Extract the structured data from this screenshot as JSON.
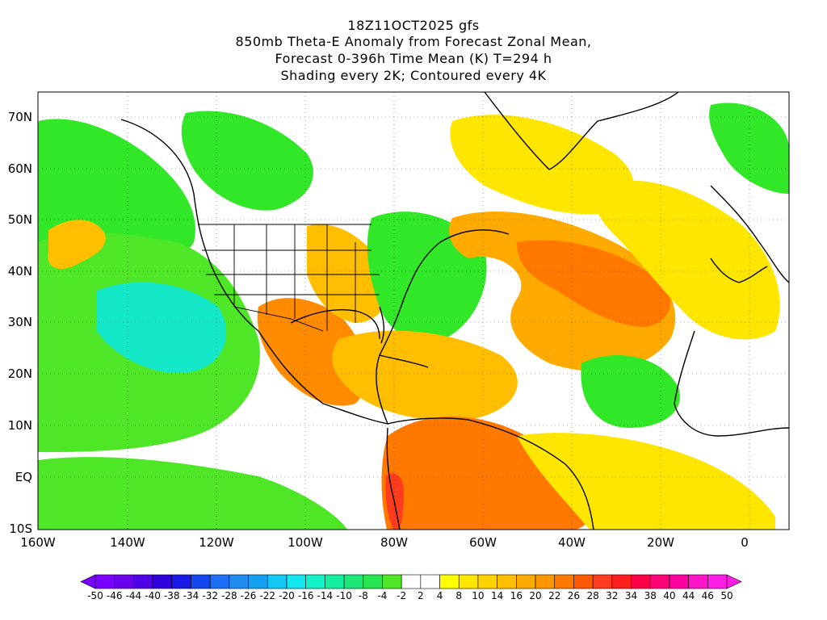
{
  "title": {
    "line1": "18Z11OCT2025 gfs",
    "line2": "850mb Theta-E Anomaly from Forecast Zonal Mean,",
    "line3": "Forecast 0-396h Time Mean (K) T=294 h",
    "line4": "Shading every 2K; Contoured every 4K"
  },
  "axes": {
    "lat_labels": [
      "70N",
      "60N",
      "50N",
      "40N",
      "30N",
      "20N",
      "10N",
      "EQ",
      "10S"
    ],
    "lon_labels": [
      "160W",
      "140W",
      "120W",
      "100W",
      "80W",
      "60W",
      "40W",
      "20W",
      "0"
    ]
  },
  "colorbar": {
    "labels": [
      "-50",
      "-46",
      "-44",
      "-40",
      "-38",
      "-34",
      "-32",
      "-28",
      "-26",
      "-22",
      "-20",
      "-16",
      "-14",
      "-10",
      "-8",
      "-4",
      "-2",
      "2",
      "4",
      "8",
      "10",
      "14",
      "16",
      "20",
      "22",
      "26",
      "28",
      "32",
      "34",
      "38",
      "40",
      "44",
      "46",
      "50"
    ],
    "colors": [
      "#7a00ff",
      "#6a00ee",
      "#4f00e6",
      "#3000dc",
      "#1a1ae6",
      "#1446f0",
      "#1e6ef5",
      "#1e8cf0",
      "#14a0f0",
      "#14c8f5",
      "#14e6f0",
      "#14f0c8",
      "#14f0a0",
      "#1ee678",
      "#28e650",
      "#50e628",
      "#ffffff",
      "#ffffff",
      "#ffff00",
      "#ffe600",
      "#ffd200",
      "#ffbe00",
      "#ffaa00",
      "#ff9600",
      "#ff7800",
      "#ff5a00",
      "#ff3c1e",
      "#ff1e1e",
      "#ff0046",
      "#ff0078",
      "#ff00a0",
      "#ff14c8",
      "#ff1ee6"
    ]
  },
  "regions": {
    "pacific_north": "#32e628",
    "pacific_central": "#50e628",
    "pacific_subtropics": "#14e6c8",
    "atlantic_cyclone": "#ffaa00",
    "atlantic_core": "#ff7800",
    "caribbean": "#ffbe00",
    "mexico": "#ff8c00",
    "south_america": "#ff7800",
    "andes": "#ff3c1e",
    "greenland_south": "#ffe600",
    "europe": "#ffe600",
    "africa_interior": "#ffffff",
    "east_atlantic_green": "#32e628",
    "northern_canada_green": "#32e628"
  }
}
